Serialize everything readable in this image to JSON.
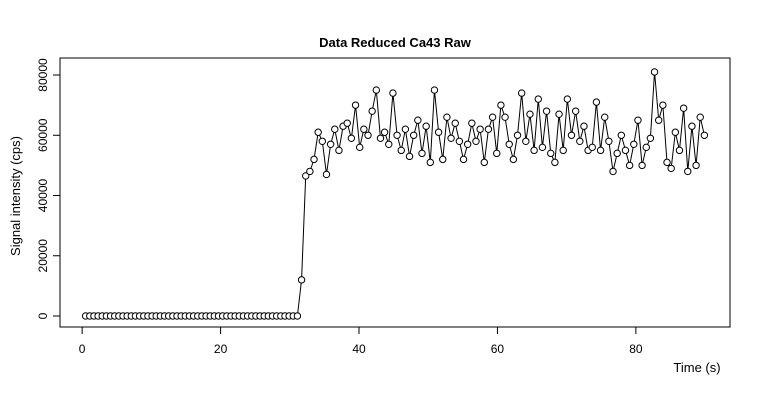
{
  "chart_data": {
    "type": "line",
    "title": "Data Reduced Ca43 Raw",
    "x_label": "Time (s)",
    "y_label": "Signal intensity (cps)",
    "x": [
      0.5,
      1.1,
      1.7,
      2.3,
      2.9,
      3.5,
      4.1,
      4.7,
      5.3,
      5.9,
      6.5,
      7.1,
      7.7,
      8.3,
      8.9,
      9.5,
      10.1,
      10.7,
      11.3,
      11.9,
      12.5,
      13.1,
      13.7,
      14.3,
      14.9,
      15.5,
      16.1,
      16.7,
      17.3,
      17.9,
      18.5,
      19.1,
      19.7,
      20.3,
      20.9,
      21.5,
      22.1,
      22.7,
      23.3,
      23.9,
      24.5,
      25.1,
      25.7,
      26.3,
      26.9,
      27.5,
      28.1,
      28.7,
      29.3,
      29.9,
      30.5,
      31.1,
      31.7,
      32.3,
      32.9,
      33.5,
      34.1,
      34.7,
      35.3,
      35.9,
      36.5,
      37.1,
      37.7,
      38.3,
      38.9,
      39.5,
      40.1,
      40.7,
      41.3,
      41.9,
      42.5,
      43.1,
      43.7,
      44.3,
      44.9,
      45.5,
      46.1,
      46.7,
      47.3,
      47.9,
      48.5,
      49.1,
      49.7,
      50.3,
      50.9,
      51.5,
      52.1,
      52.7,
      53.3,
      53.9,
      54.5,
      55.1,
      55.7,
      56.3,
      56.9,
      57.5,
      58.1,
      58.7,
      59.3,
      59.9,
      60.5,
      61.1,
      61.7,
      62.3,
      62.9,
      63.5,
      64.1,
      64.7,
      65.3,
      65.9,
      66.5,
      67.1,
      67.7,
      68.3,
      68.9,
      69.5,
      70.1,
      70.7,
      71.3,
      71.9,
      72.5,
      73.1,
      73.7,
      74.3,
      74.9,
      75.5,
      76.1,
      76.7,
      77.3,
      77.9,
      78.5,
      79.1,
      79.7,
      80.3,
      80.9,
      81.5,
      82.1,
      82.7,
      83.3,
      83.9,
      84.5,
      85.1,
      85.7,
      86.3,
      86.9,
      87.5,
      88.1,
      88.7,
      89.3,
      89.9
    ],
    "values": [
      0,
      0,
      0,
      0,
      0,
      0,
      0,
      0,
      0,
      0,
      0,
      0,
      0,
      0,
      0,
      0,
      0,
      0,
      0,
      0,
      0,
      0,
      0,
      0,
      0,
      0,
      0,
      0,
      0,
      0,
      0,
      0,
      0,
      0,
      0,
      0,
      0,
      0,
      0,
      0,
      0,
      0,
      0,
      0,
      0,
      0,
      0,
      0,
      0,
      0,
      0,
      0,
      12000,
      46500,
      48000,
      52000,
      61000,
      58000,
      47000,
      57000,
      62000,
      55000,
      63000,
      64000,
      59000,
      70000,
      56000,
      62000,
      60000,
      68000,
      75000,
      59000,
      61000,
      57000,
      74000,
      60000,
      55000,
      62000,
      53000,
      60000,
      65000,
      54000,
      63000,
      51000,
      75000,
      61000,
      52000,
      66000,
      59000,
      64000,
      58000,
      52000,
      57000,
      64000,
      58000,
      62000,
      51000,
      62000,
      66000,
      54000,
      70000,
      66000,
      57000,
      52000,
      60000,
      74000,
      58000,
      67000,
      55000,
      72000,
      56000,
      68000,
      54000,
      51000,
      67000,
      55000,
      72000,
      60000,
      68000,
      58000,
      63000,
      55000,
      56000,
      71000,
      55000,
      66000,
      58000,
      48000,
      54000,
      60000,
      55000,
      50000,
      57000,
      65000,
      50000,
      56000,
      59000,
      81000,
      65000,
      70000,
      51000,
      49000,
      61000,
      55000,
      69000,
      48000,
      63000,
      50000,
      66000,
      60000
    ],
    "color": "#000000",
    "xlim": [
      -3.2,
      93.6
    ],
    "xticks": [
      0,
      20,
      40,
      60,
      80
    ],
    "ylim": [
      -3650,
      85650
    ],
    "yticks": [
      0,
      20000,
      40000,
      60000,
      80000
    ]
  }
}
